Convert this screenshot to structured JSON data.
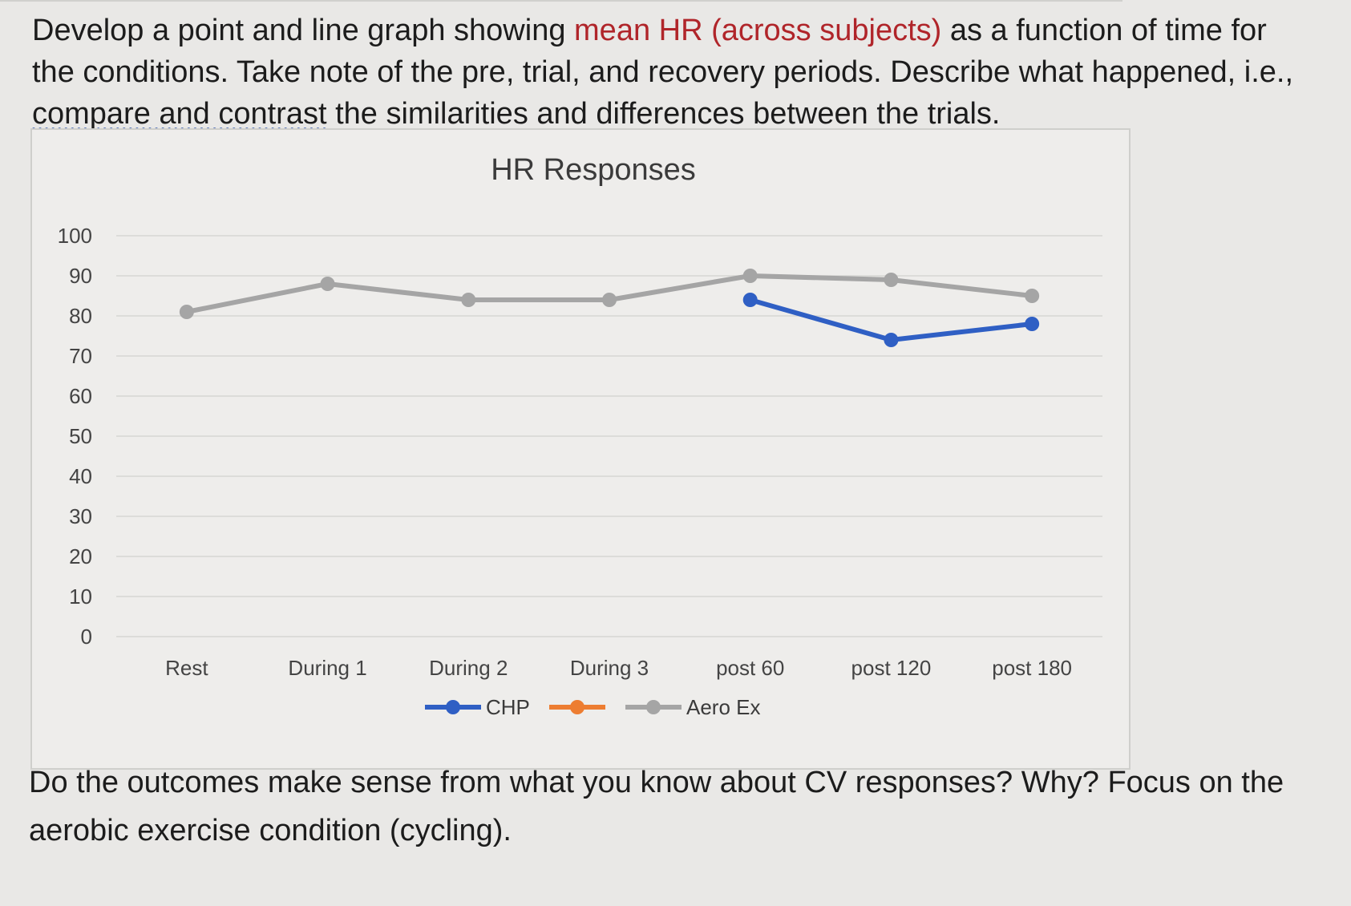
{
  "prompt": {
    "part1": "Develop a point and line graph showing ",
    "highlight1": "mean HR",
    "part2": " ",
    "highlight2": "(across subjects)",
    "part3": " as a function of time for the conditions.  Take note of the pre, trial, and recovery periods. Describe what happened, i.e., ",
    "underlined": "compare and contrast",
    "part4": " the similarities and differences between the trials."
  },
  "followup": {
    "text": "Do the outcomes make sense from what you know about CV responses? Why? Focus on the aerobic exercise condition (cycling)."
  },
  "colors": {
    "CHP": "#2f5fc4",
    "unnamed": "#ed7d31",
    "Aero Ex": "#a5a5a5",
    "gridline": "#d6d6d3",
    "text": "#444444"
  },
  "chart_data": {
    "type": "line",
    "title": "HR Responses",
    "xlabel": "",
    "ylabel": "",
    "ylim": [
      0,
      100
    ],
    "yticks": [
      0,
      10,
      20,
      30,
      40,
      50,
      60,
      70,
      80,
      90,
      100
    ],
    "grid": true,
    "legend_position": "bottom",
    "categories": [
      "Rest",
      "During 1",
      "During 2",
      "During 3",
      "post 60",
      "post 120",
      "post 180"
    ],
    "series": [
      {
        "name": "CHP",
        "values": [
          null,
          null,
          null,
          null,
          84,
          74,
          78
        ]
      },
      {
        "name": "",
        "values": [
          null,
          null,
          null,
          null,
          null,
          null,
          null
        ]
      },
      {
        "name": "Aero Ex",
        "values": [
          81,
          88,
          84,
          84,
          90,
          89,
          85
        ]
      }
    ]
  }
}
